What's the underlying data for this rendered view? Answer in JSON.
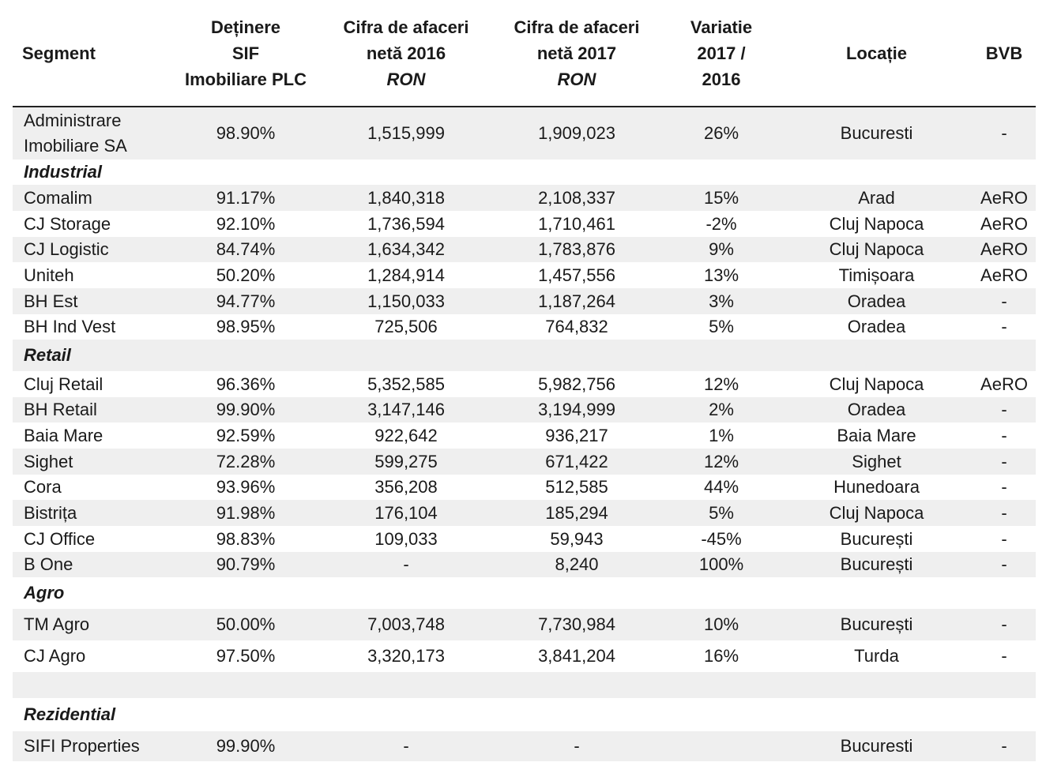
{
  "headers": {
    "segment": "Segment",
    "holding": [
      "Deținere",
      "SIF",
      "Imobiliare PLC"
    ],
    "rev2016": [
      "Cifra de afaceri",
      "netă 2016",
      "RON"
    ],
    "rev2017": [
      "Cifra de afaceri",
      "netă 2017",
      "RON"
    ],
    "variation": [
      "Variatie",
      "2017 /",
      "2016"
    ],
    "location": "Locație",
    "bvb": "BVB"
  },
  "rows": [
    {
      "type": "data",
      "shade": true,
      "height": 67,
      "name": "Administrare Imobiliare SA",
      "holding": "98.90%",
      "rev2016": "1,515,999",
      "rev2017": "1,909,023",
      "variation": "26%",
      "location": "Bucuresti",
      "bvb": "-"
    },
    {
      "type": "section",
      "shade": false,
      "height": 32,
      "name": "Industrial"
    },
    {
      "type": "data",
      "shade": true,
      "height": 33,
      "name": "Comalim",
      "holding": "91.17%",
      "rev2016": "1,840,318",
      "rev2017": "2,108,337",
      "variation": "15%",
      "location": "Arad",
      "bvb": "AeRO"
    },
    {
      "type": "data",
      "shade": false,
      "height": 33,
      "name": "CJ Storage",
      "holding": "92.10%",
      "rev2016": "1,736,594",
      "rev2017": "1,710,461",
      "variation": "-2%",
      "location": "Cluj Napoca",
      "bvb": "AeRO"
    },
    {
      "type": "data",
      "shade": true,
      "height": 32,
      "name": "CJ Logistic",
      "holding": "84.74%",
      "rev2016": "1,634,342",
      "rev2017": "1,783,876",
      "variation": "9%",
      "location": "Cluj Napoca",
      "bvb": "AeRO"
    },
    {
      "type": "data",
      "shade": false,
      "height": 33,
      "name": "Uniteh",
      "holding": "50.20%",
      "rev2016": "1,284,914",
      "rev2017": "1,457,556",
      "variation": "13%",
      "location": "Timișoara",
      "bvb": "AeRO"
    },
    {
      "type": "data",
      "shade": true,
      "height": 33,
      "name": "BH Est",
      "holding": "94.77%",
      "rev2016": "1,150,033",
      "rev2017": "1,187,264",
      "variation": "3%",
      "location": "Oradea",
      "bvb": "-"
    },
    {
      "type": "data",
      "shade": false,
      "height": 32,
      "name": "BH Ind Vest",
      "holding": "98.95%",
      "rev2016": "725,506",
      "rev2017": "764,832",
      "variation": "5%",
      "location": "Oradea",
      "bvb": "-"
    },
    {
      "type": "section",
      "shade": true,
      "height": 40,
      "name": "Retail"
    },
    {
      "type": "data",
      "shade": false,
      "height": 33,
      "name": "Cluj Retail",
      "holding": "96.36%",
      "rev2016": "5,352,585",
      "rev2017": "5,982,756",
      "variation": "12%",
      "location": "Cluj Napoca",
      "bvb": "AeRO"
    },
    {
      "type": "data",
      "shade": true,
      "height": 32,
      "name": "BH Retail",
      "holding": "99.90%",
      "rev2016": "3,147,146",
      "rev2017": "3,194,999",
      "variation": "2%",
      "location": "Oradea",
      "bvb": "-"
    },
    {
      "type": "data",
      "shade": false,
      "height": 33,
      "name": "Baia Mare",
      "holding": "92.59%",
      "rev2016": "922,642",
      "rev2017": "936,217",
      "variation": "1%",
      "location": "Baia Mare",
      "bvb": "-"
    },
    {
      "type": "data",
      "shade": true,
      "height": 33,
      "name": "Sighet",
      "holding": "72.28%",
      "rev2016": "599,275",
      "rev2017": "671,422",
      "variation": "12%",
      "location": "Sighet",
      "bvb": "-"
    },
    {
      "type": "data",
      "shade": false,
      "height": 32,
      "name": "Cora",
      "holding": "93.96%",
      "rev2016": "356,208",
      "rev2017": "512,585",
      "variation": "44%",
      "location": "Hunedoara",
      "bvb": "-"
    },
    {
      "type": "data",
      "shade": true,
      "height": 33,
      "name": "Bistrița",
      "holding": "91.98%",
      "rev2016": "176,104",
      "rev2017": "185,294",
      "variation": "5%",
      "location": "Cluj Napoca",
      "bvb": "-"
    },
    {
      "type": "data",
      "shade": false,
      "height": 33,
      "name": "CJ Office",
      "holding": "98.83%",
      "rev2016": "109,033",
      "rev2017": "59,943",
      "variation": "-45%",
      "location": "București",
      "bvb": "-"
    },
    {
      "type": "data",
      "shade": true,
      "height": 32,
      "name": "B One",
      "holding": "90.79%",
      "rev2016": "-",
      "rev2017": "8,240",
      "variation": "100%",
      "location": "București",
      "bvb": "-"
    },
    {
      "type": "section",
      "shade": false,
      "height": 40,
      "name": "Agro"
    },
    {
      "type": "data",
      "shade": true,
      "height": 40,
      "name": "TM Agro",
      "holding": "50.00%",
      "rev2016": "7,003,748",
      "rev2017": "7,730,984",
      "variation": "10%",
      "location": "București",
      "bvb": "-"
    },
    {
      "type": "data",
      "shade": false,
      "height": 40,
      "name": "CJ Agro",
      "holding": "97.50%",
      "rev2016": "3,320,173",
      "rev2017": "3,841,204",
      "variation": "16%",
      "location": "Turda",
      "bvb": "-"
    },
    {
      "type": "spacer",
      "shade": true,
      "height": 33
    },
    {
      "type": "section",
      "shade": false,
      "height": 42,
      "name": "Rezidential"
    },
    {
      "type": "data",
      "shade": true,
      "height": 38,
      "name": "SIFI Properties",
      "holding": "99.90%",
      "rev2016": "-",
      "rev2017": "-",
      "variation": "",
      "location": "Bucuresti",
      "bvb": "-"
    }
  ]
}
